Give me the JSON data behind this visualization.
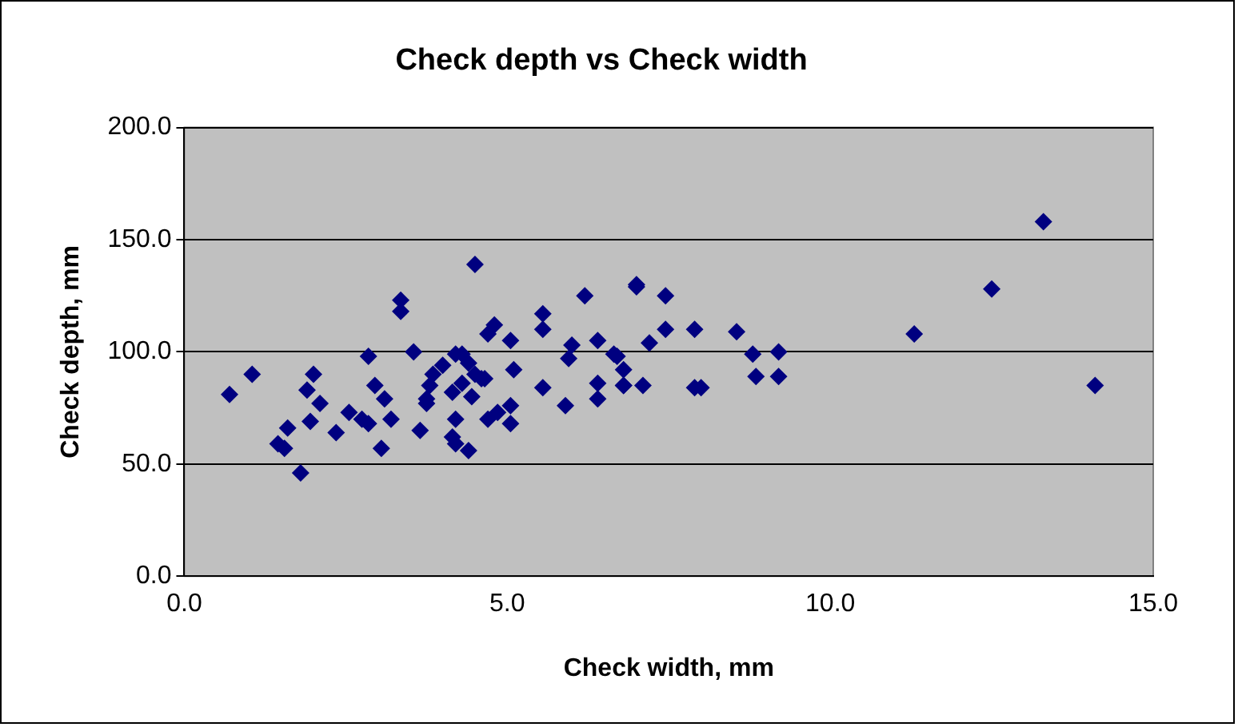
{
  "chart_data": {
    "type": "scatter",
    "title": "Check depth vs Check width",
    "xlabel": "Check width, mm",
    "ylabel": "Check depth, mm",
    "xlim": [
      0,
      15
    ],
    "xticks": [
      {
        "value": 0,
        "label": "0.0"
      },
      {
        "value": 5,
        "label": "5.0"
      },
      {
        "value": 10,
        "label": "10.0"
      },
      {
        "value": 15,
        "label": "15.0"
      }
    ],
    "ylim": [
      0,
      200
    ],
    "yticks": [
      {
        "value": 0,
        "label": "0.0"
      },
      {
        "value": 50,
        "label": "50.0"
      },
      {
        "value": 100,
        "label": "100.0"
      },
      {
        "value": 150,
        "label": "150.0"
      },
      {
        "value": 200,
        "label": "200.0"
      }
    ],
    "grid": "y",
    "legend": false,
    "marker": "diamond",
    "series": [
      {
        "color": "#000080",
        "x": [
          0.7,
          1.05,
          1.6,
          1.45,
          1.55,
          1.8,
          2.0,
          1.9,
          2.1,
          1.95,
          2.35,
          2.55,
          2.75,
          2.85,
          2.85,
          2.95,
          3.1,
          3.2,
          3.05,
          3.35,
          3.35,
          3.55,
          3.65,
          3.85,
          3.75,
          3.8,
          3.75,
          4.15,
          4.2,
          4.2,
          4.4,
          4.2,
          4.15,
          4.5,
          4.3,
          4.5,
          4.4,
          4.65,
          4.7,
          4.8,
          4.85,
          4.7,
          5.05,
          5.05,
          5.05,
          5.1,
          4.6,
          5.55,
          5.55,
          5.55,
          5.9,
          5.95,
          6.0,
          6.2,
          6.4,
          6.4,
          6.4,
          6.65,
          6.8,
          6.8,
          6.7,
          6.8,
          7.0,
          7.0,
          7.1,
          7.2,
          7.45,
          7.45,
          7.9,
          7.9,
          8.0,
          8.55,
          8.8,
          8.85,
          9.2,
          9.2,
          11.3,
          12.5,
          13.3,
          14.1,
          4.0,
          4.3,
          4.45
        ],
        "values": [
          81,
          90,
          66,
          59,
          57,
          46,
          90,
          83,
          77,
          69,
          64,
          73,
          70,
          68,
          98,
          85,
          79,
          70,
          57,
          123,
          118,
          100,
          65,
          90,
          79,
          85,
          77,
          82,
          70,
          59,
          56,
          99,
          62,
          139,
          99,
          90,
          95,
          88,
          108,
          112,
          73,
          70,
          105,
          76,
          68,
          92,
          88,
          117,
          110,
          84,
          76,
          97,
          103,
          125,
          105,
          86,
          79,
          99,
          92,
          85,
          98,
          85,
          129,
          130,
          85,
          104,
          125,
          110,
          110,
          84,
          84,
          109,
          99,
          89,
          100,
          89,
          108,
          128,
          158,
          85,
          94,
          86,
          80
        ]
      }
    ]
  }
}
